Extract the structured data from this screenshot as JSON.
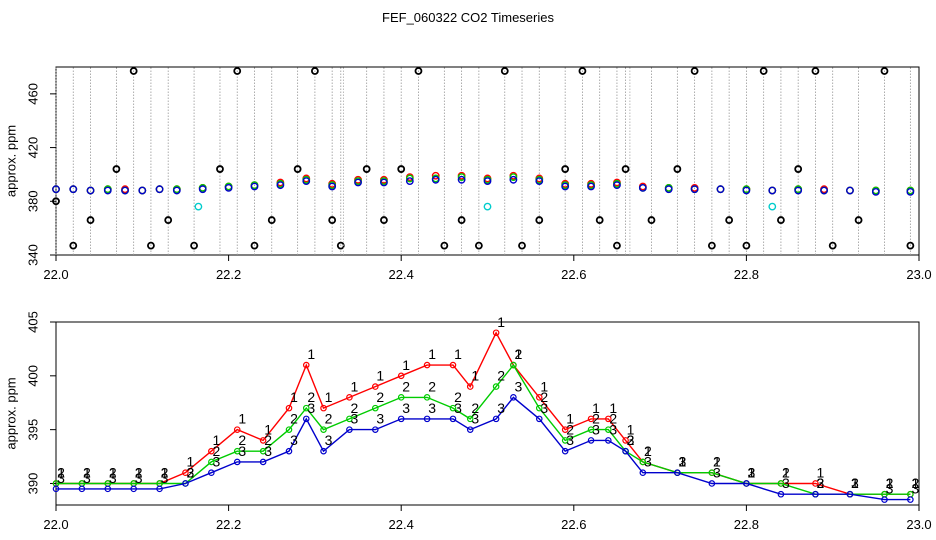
{
  "figure": {
    "title": "FEF_060322  CO2 Timeseries"
  },
  "chart_data": [
    {
      "type": "scatter",
      "ylabel": "approx. ppm",
      "xlim": [
        22.0,
        23.0
      ],
      "ylim": [
        340,
        480
      ],
      "x_ticks": [
        "22.0",
        "22.2",
        "22.4",
        "22.6",
        "22.8",
        "23.0"
      ],
      "y_ticks": [
        "340",
        "380",
        "420",
        "460"
      ],
      "series": [
        {
          "color": "#ff0000",
          "x": [
            22.0,
            22.02,
            22.04,
            22.06,
            22.08,
            22.1,
            22.12,
            22.14,
            22.17,
            22.2,
            22.23,
            22.26,
            22.29,
            22.32,
            22.35,
            22.38,
            22.41,
            22.44,
            22.47,
            22.5,
            22.53,
            22.56,
            22.59,
            22.62,
            22.65,
            22.68,
            22.71,
            22.74,
            22.77,
            22.8,
            22.83,
            22.86,
            22.89,
            22.92,
            22.95,
            22.99
          ],
          "y": [
            389,
            389,
            388,
            389,
            389,
            388,
            389,
            389,
            390,
            391,
            392,
            394,
            397,
            393,
            396,
            396,
            398,
            399,
            399,
            397,
            399,
            397,
            393,
            393,
            394,
            391,
            390,
            390,
            389,
            389,
            388,
            389,
            389,
            388,
            388,
            388
          ]
        },
        {
          "color": "#00cc00",
          "x": [
            22.0,
            22.02,
            22.04,
            22.06,
            22.08,
            22.1,
            22.12,
            22.14,
            22.17,
            22.2,
            22.23,
            22.26,
            22.29,
            22.32,
            22.35,
            22.38,
            22.41,
            22.44,
            22.47,
            22.5,
            22.53,
            22.56,
            22.59,
            22.62,
            22.65,
            22.68,
            22.71,
            22.74,
            22.77,
            22.8,
            22.83,
            22.86,
            22.89,
            22.92,
            22.95,
            22.99
          ],
          "y": [
            389,
            389,
            388,
            389,
            388,
            388,
            389,
            389,
            390,
            391,
            392,
            393,
            396,
            392,
            395,
            395,
            397,
            397,
            398,
            396,
            398,
            396,
            392,
            392,
            393,
            390,
            390,
            389,
            389,
            389,
            388,
            389,
            388,
            388,
            388,
            388
          ]
        },
        {
          "color": "#0000cc",
          "x": [
            22.0,
            22.02,
            22.04,
            22.06,
            22.08,
            22.1,
            22.12,
            22.14,
            22.17,
            22.2,
            22.23,
            22.26,
            22.29,
            22.32,
            22.35,
            22.38,
            22.41,
            22.44,
            22.47,
            22.5,
            22.53,
            22.56,
            22.59,
            22.62,
            22.65,
            22.68,
            22.71,
            22.74,
            22.77,
            22.8,
            22.83,
            22.86,
            22.89,
            22.92,
            22.95,
            22.99
          ],
          "y": [
            389,
            389,
            388,
            388,
            388,
            388,
            389,
            388,
            389,
            390,
            391,
            392,
            395,
            391,
            394,
            394,
            395,
            396,
            396,
            395,
            396,
            395,
            391,
            391,
            392,
            390,
            389,
            389,
            389,
            388,
            388,
            388,
            388,
            388,
            387,
            387
          ]
        },
        {
          "color": "#000000",
          "x": [
            22.0,
            22.02,
            22.04,
            22.07,
            22.09,
            22.11,
            22.13,
            22.16,
            22.19,
            22.21,
            22.23,
            22.25,
            22.28,
            22.3,
            22.32,
            22.33,
            22.36,
            22.38,
            22.4,
            22.42,
            22.45,
            22.47,
            22.49,
            22.52,
            22.54,
            22.56,
            22.59,
            22.61,
            22.63,
            22.65,
            22.66,
            22.69,
            22.72,
            22.74,
            22.76,
            22.78,
            22.8,
            22.82,
            22.84,
            22.86,
            22.88,
            22.9,
            22.93,
            22.96,
            22.99
          ],
          "y": [
            380,
            347,
            366,
            404,
            477,
            347,
            366,
            347,
            404,
            477,
            347,
            366,
            404,
            477,
            366,
            347,
            404,
            366,
            404,
            477,
            347,
            366,
            347,
            477,
            347,
            366,
            404,
            477,
            366,
            347,
            404,
            366,
            404,
            477,
            347,
            366,
            347,
            477,
            366,
            404,
            477,
            347,
            366,
            477,
            347
          ]
        },
        {
          "color": "#00cccc",
          "x": [
            22.165,
            22.5,
            22.83
          ],
          "y": [
            376,
            376,
            376
          ]
        }
      ]
    },
    {
      "type": "line",
      "ylabel": "approx. ppm",
      "xlim": [
        22.0,
        23.0
      ],
      "ylim": [
        388,
        405
      ],
      "x_ticks": [
        "22.0",
        "22.2",
        "22.4",
        "22.6",
        "22.8",
        "23.0"
      ],
      "y_ticks": [
        "390",
        "395",
        "400",
        "405"
      ],
      "series": [
        {
          "color": "#ff0000",
          "label": "1",
          "x": [
            22.0,
            22.03,
            22.06,
            22.09,
            22.12,
            22.15,
            22.18,
            22.21,
            22.24,
            22.27,
            22.29,
            22.31,
            22.34,
            22.37,
            22.4,
            22.43,
            22.46,
            22.48,
            22.51,
            22.53,
            22.56,
            22.59,
            22.62,
            22.64,
            22.66,
            22.68,
            22.72,
            22.76,
            22.8,
            22.84,
            22.88,
            22.92,
            22.96,
            22.99
          ],
          "y": [
            390,
            390,
            390,
            390,
            390,
            391,
            393,
            395,
            394,
            397,
            401,
            397,
            398,
            399,
            400,
            401,
            401,
            399,
            404,
            401,
            398,
            395,
            396,
            396,
            394,
            392,
            391,
            391,
            390,
            390,
            390,
            389,
            389,
            389
          ]
        },
        {
          "color": "#00cc00",
          "label": "2",
          "x": [
            22.0,
            22.03,
            22.06,
            22.09,
            22.12,
            22.15,
            22.18,
            22.21,
            22.24,
            22.27,
            22.29,
            22.31,
            22.34,
            22.37,
            22.4,
            22.43,
            22.46,
            22.48,
            22.51,
            22.53,
            22.56,
            22.59,
            22.62,
            22.64,
            22.66,
            22.68,
            22.72,
            22.76,
            22.8,
            22.84,
            22.88,
            22.92,
            22.96,
            22.99
          ],
          "y": [
            390,
            390,
            390,
            390,
            390,
            390,
            392,
            393,
            393,
            395,
            397,
            395,
            396,
            397,
            398,
            398,
            397,
            396,
            399,
            401,
            397,
            394,
            395,
            395,
            393,
            392,
            391,
            391,
            390,
            390,
            389,
            389,
            389,
            389
          ]
        },
        {
          "color": "#0000cc",
          "label": "3",
          "x": [
            22.0,
            22.03,
            22.06,
            22.09,
            22.12,
            22.15,
            22.18,
            22.21,
            22.24,
            22.27,
            22.29,
            22.31,
            22.34,
            22.37,
            22.4,
            22.43,
            22.46,
            22.48,
            22.51,
            22.53,
            22.56,
            22.59,
            22.62,
            22.64,
            22.66,
            22.68,
            22.72,
            22.76,
            22.8,
            22.84,
            22.88,
            22.92,
            22.96,
            22.99
          ],
          "y": [
            389.5,
            389.5,
            389.5,
            389.5,
            389.5,
            390,
            391,
            392,
            392,
            393,
            396,
            393,
            395,
            395,
            396,
            396,
            396,
            395,
            396,
            398,
            396,
            393,
            394,
            394,
            393,
            391,
            391,
            390,
            390,
            389,
            389,
            389,
            388.5,
            388.5
          ]
        }
      ]
    }
  ]
}
